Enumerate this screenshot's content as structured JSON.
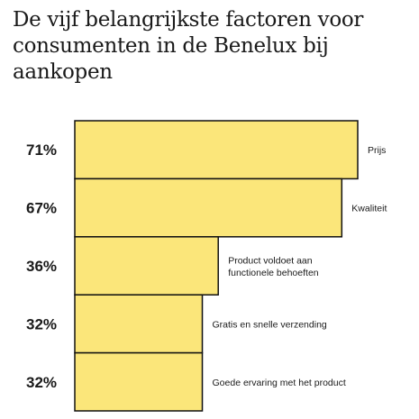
{
  "title": "De vijf belangrijkste factoren voor consumenten in de Benelux bij aankopen",
  "chart_data": {
    "type": "bar",
    "orientation": "horizontal",
    "title": "De vijf belangrijkste factoren voor consumenten in de Benelux bij aankopen",
    "categories": [
      [
        "Prijs"
      ],
      [
        "Kwaliteit"
      ],
      [
        "Product voldoet aan",
        "functionele behoeften"
      ],
      [
        "Gratis en snelle verzending"
      ],
      [
        "Goede ervaring met het product"
      ]
    ],
    "values": [
      71,
      67,
      36,
      32,
      32
    ],
    "value_labels": [
      "71%",
      "67%",
      "36%",
      "32%",
      "32%"
    ],
    "unit": "%",
    "xlim": [
      0,
      71
    ],
    "bar_color": "#fbe67a",
    "bar_edge_color": "#111111",
    "grid": false,
    "legend": "none"
  }
}
